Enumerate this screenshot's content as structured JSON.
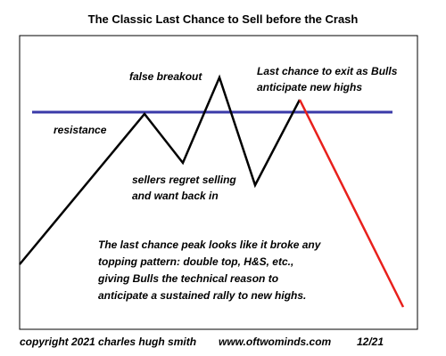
{
  "header": {
    "title": "The Classic Last Chance to Sell before the Crash"
  },
  "labels": {
    "false_breakout": "false breakout",
    "last_chance": [
      "Last chance to exit as Bulls",
      "anticipate new highs"
    ],
    "resistance": "resistance",
    "sellers": [
      "sellers regret selling",
      "and want back in"
    ],
    "explanation": [
      "The last chance peak looks like it broke any",
      "topping pattern: double top, H&S, etc.,",
      "giving Bulls the technical reason to",
      "anticipate a sustained rally to new highs."
    ]
  },
  "footer": {
    "copyright": "copyright 2021 charles hugh smith",
    "site": "www.oftwominds.com",
    "date": "12/21"
  }
}
